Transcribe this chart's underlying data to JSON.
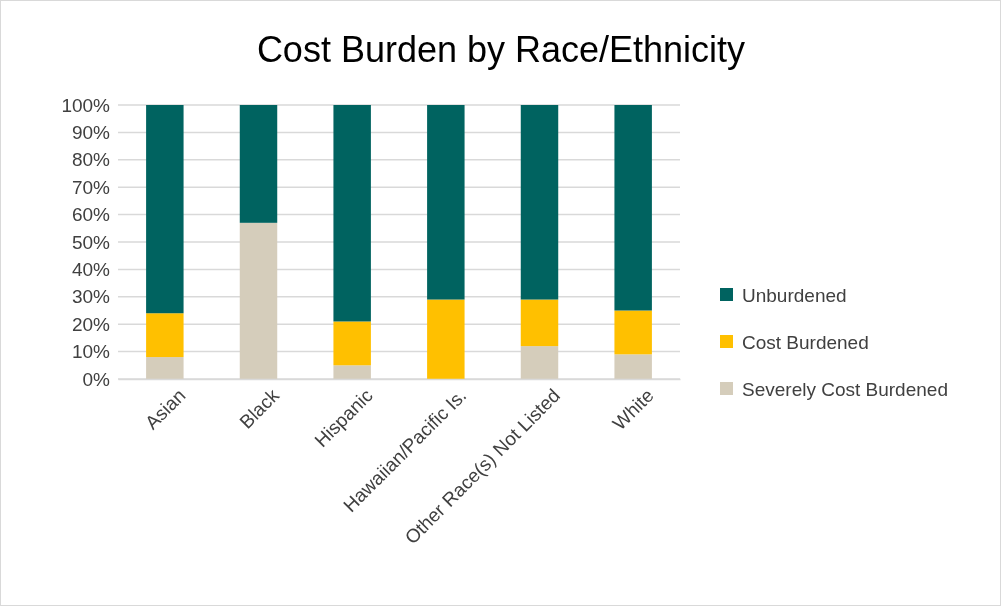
{
  "chart_data": {
    "type": "bar",
    "title": "Cost Burden by Race/Ethnicity",
    "stacked": true,
    "categories": [
      "Asian",
      "Black",
      "Hispanic",
      "Hawaiian/Pacific Is.",
      "Other Race(s) Not Listed",
      "White"
    ],
    "series": [
      {
        "name": "Severely Cost Burdened",
        "color": "#d5cdbb",
        "values": [
          8,
          57,
          5,
          0,
          12,
          9
        ]
      },
      {
        "name": "Cost Burdened",
        "color": "#ffc000",
        "values": [
          16,
          0,
          16,
          29,
          17,
          16
        ]
      },
      {
        "name": "Unburdened",
        "color": "#006360",
        "values": [
          76,
          43,
          79,
          71,
          71,
          75
        ]
      }
    ],
    "ylim": [
      0,
      100
    ],
    "yticks": [
      {
        "value": 0,
        "label": "0%"
      },
      {
        "value": 10,
        "label": "10%"
      },
      {
        "value": 20,
        "label": "20%"
      },
      {
        "value": 30,
        "label": "30%"
      },
      {
        "value": 40,
        "label": "40%"
      },
      {
        "value": 50,
        "label": "50%"
      },
      {
        "value": 60,
        "label": "60%"
      },
      {
        "value": 70,
        "label": "70%"
      },
      {
        "value": 80,
        "label": "80%"
      },
      {
        "value": 90,
        "label": "90%"
      },
      {
        "value": 100,
        "label": "100%"
      }
    ],
    "grid": "y",
    "legend": "right"
  }
}
